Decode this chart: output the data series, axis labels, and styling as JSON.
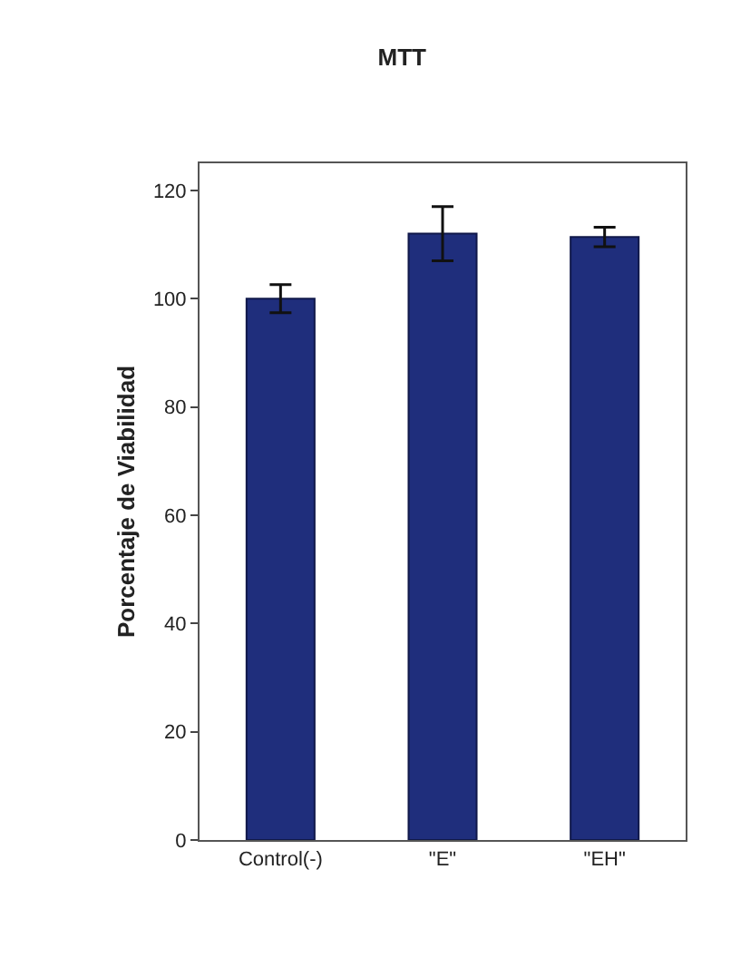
{
  "chart_data": {
    "type": "bar",
    "title": "MTT",
    "ylabel": "Porcentaje de Viabilidad",
    "categories": [
      "Control(-)",
      "\"E\"",
      "\"EH\""
    ],
    "values": [
      100,
      112,
      111.4
    ],
    "errors": [
      2.6,
      5,
      1.8
    ],
    "color": "#1f2e7c",
    "ylim": [
      0,
      125
    ],
    "yticks": [
      0,
      20,
      40,
      60,
      80,
      100,
      120
    ],
    "grid": false
  }
}
